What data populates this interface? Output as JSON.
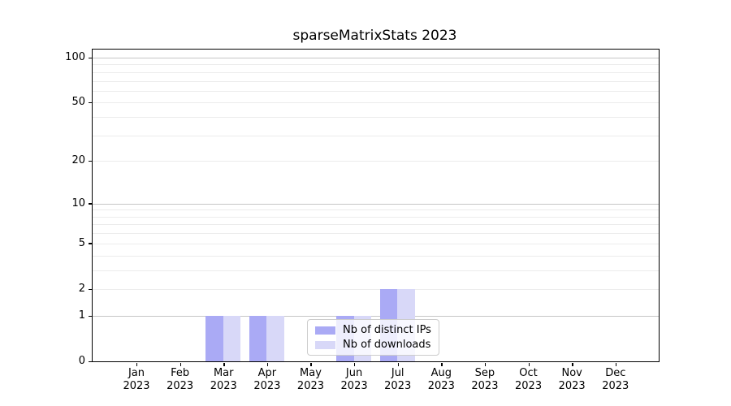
{
  "title": "sparseMatrixStats 2023",
  "chart_data": {
    "type": "bar",
    "title": "sparseMatrixStats 2023",
    "categories": [
      "Jan",
      "Feb",
      "Mar",
      "Apr",
      "May",
      "Jun",
      "Jul",
      "Aug",
      "Sep",
      "Oct",
      "Nov",
      "Dec"
    ],
    "x_sublabel": "2023",
    "series": [
      {
        "name": "Nb of distinct IPs",
        "color": "#aaaaf5",
        "values": [
          0,
          0,
          1,
          1,
          0,
          1,
          2,
          0,
          0,
          0,
          0,
          0
        ]
      },
      {
        "name": "Nb of downloads",
        "color": "#d8d8f8",
        "values": [
          0,
          0,
          1,
          1,
          0,
          1,
          2,
          0,
          0,
          0,
          0,
          0
        ]
      }
    ],
    "y_scale": "log1p",
    "ylim": [
      0,
      113
    ],
    "y_tick_values": [
      0,
      1,
      2,
      5,
      10,
      20,
      50,
      100
    ],
    "y_major_gridlines": [
      1,
      10,
      100
    ],
    "y_minor_gridlines": [
      2,
      3,
      4,
      5,
      6,
      7,
      8,
      9,
      20,
      30,
      40,
      50,
      60,
      70,
      80,
      90
    ],
    "grid": true,
    "legend_position": "lower-center"
  },
  "colors": {
    "distinct_ips": "#aaaaf5",
    "downloads": "#d8d8f8",
    "grid_major": "#c6c6c6",
    "grid_minor": "#ececec",
    "axis": "#000000",
    "legend_border": "#cccccc",
    "text": "#000000",
    "background": "#ffffff"
  }
}
